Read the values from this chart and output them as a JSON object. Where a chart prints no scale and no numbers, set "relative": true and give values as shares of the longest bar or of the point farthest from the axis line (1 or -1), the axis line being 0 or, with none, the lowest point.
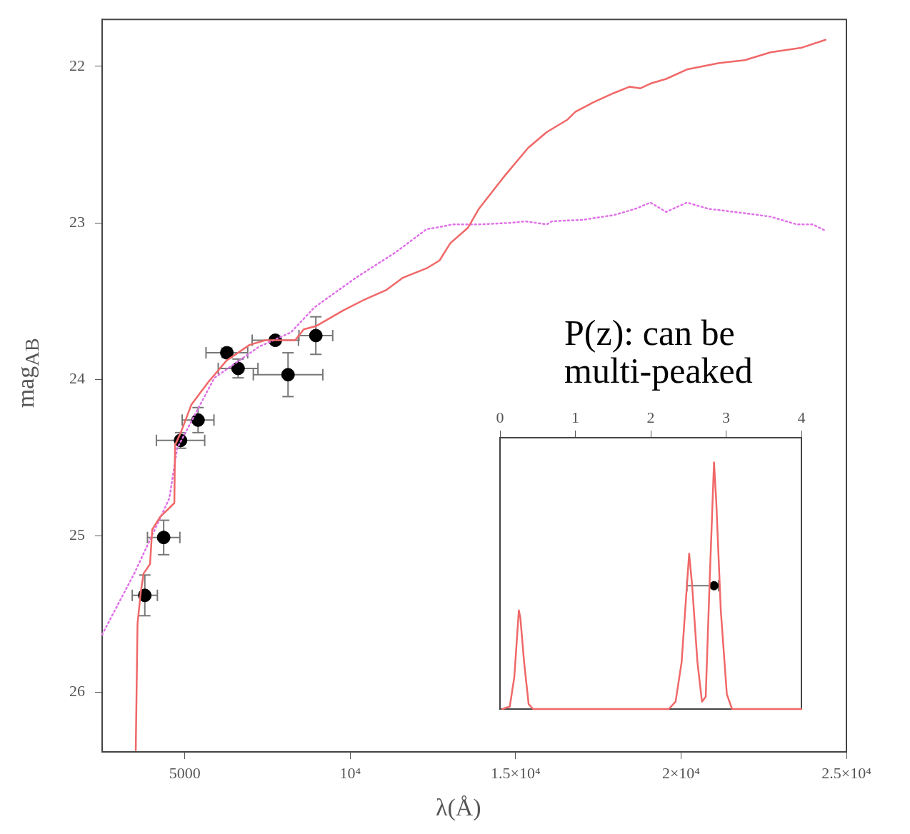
{
  "chart_data": [
    {
      "type": "line",
      "xlabel": "λ(Å)",
      "ylabel": "mag$_{AB}$",
      "xlim": [
        2500,
        25000
      ],
      "ylim": [
        26.38,
        21.7
      ],
      "xticks": [
        {
          "value": 5000,
          "label": "5000"
        },
        {
          "value": 10000,
          "label": "10⁴"
        },
        {
          "value": 15000,
          "label": "1.5×10⁴"
        },
        {
          "value": 20000,
          "label": "2×10⁴"
        },
        {
          "value": 25000,
          "label": "2.5×10⁴"
        }
      ],
      "yticks": [
        22,
        23,
        24,
        25,
        26
      ],
      "grid": false,
      "series": [
        {
          "type": "line",
          "color": "#f06868",
          "line_style": "solid",
          "x": [
            3516,
            3570,
            3667,
            3753,
            3948,
            4013,
            4250,
            4683,
            4704,
            4877,
            5201,
            5698,
            6260,
            6952,
            7427,
            8335,
            8594,
            8961,
            9783,
            10431,
            11079,
            11598,
            12311,
            12700,
            13024,
            13564,
            13888,
            14666,
            15380,
            15941,
            16568,
            16806,
            17346,
            17973,
            18448,
            18772,
            19075,
            19550,
            20177,
            21128,
            21927,
            22705,
            23656,
            24369
          ],
          "values": [
            26.37,
            25.56,
            25.36,
            25.24,
            25.18,
            24.96,
            24.88,
            24.79,
            24.42,
            24.34,
            24.16,
            24.02,
            23.88,
            23.78,
            23.75,
            23.75,
            23.68,
            23.66,
            23.56,
            23.49,
            23.43,
            23.35,
            23.29,
            23.24,
            23.13,
            23.03,
            22.91,
            22.7,
            22.52,
            22.42,
            22.34,
            22.29,
            22.23,
            22.17,
            22.13,
            22.14,
            22.11,
            22.08,
            22.02,
            21.98,
            21.96,
            21.91,
            21.88,
            21.83
          ]
        },
        {
          "type": "line",
          "color": "#e070e8",
          "line_style": "dotted",
          "x": [
            2500,
            3472,
            4531,
            4769,
            5893,
            7254,
            8205,
            8918,
            10172,
            11360,
            12311,
            12613,
            13089,
            13888,
            14839,
            15293,
            15941,
            16093,
            17043,
            17973,
            18621,
            19075,
            19550,
            20177,
            20501,
            20825,
            21603,
            22705,
            23505,
            23981,
            24369
          ],
          "values": [
            25.63,
            25.24,
            24.76,
            24.44,
            23.99,
            23.79,
            23.7,
            23.54,
            23.35,
            23.19,
            23.04,
            23.03,
            23.01,
            23.01,
            23.0,
            22.99,
            23.01,
            22.99,
            22.98,
            22.95,
            22.91,
            22.87,
            22.93,
            22.87,
            22.89,
            22.91,
            22.93,
            22.96,
            23.01,
            23.01,
            23.05
          ]
        },
        {
          "type": "scatter",
          "color": "#000000",
          "marker": "circle",
          "x": [
            3790,
            4360,
            4870,
            5400,
            6270,
            6610,
            7735,
            8120,
            8960
          ],
          "values": [
            25.38,
            25.01,
            24.39,
            24.26,
            23.83,
            23.93,
            23.75,
            23.97,
            23.72
          ],
          "errors": [
            0.13,
            0.11,
            0.05,
            0.08,
            0.03,
            0.06,
            0.02,
            0.14,
            0.12
          ],
          "xerrors": [
            380,
            490,
            730,
            480,
            630,
            600,
            700,
            1050,
            510
          ]
        }
      ]
    },
    {
      "type": "line",
      "title": "P(z): can be multi-peaked",
      "xlim": [
        0,
        4
      ],
      "xticks": [
        0,
        1,
        2,
        3,
        4
      ],
      "relative": true,
      "tick_labels": "x",
      "series": [
        {
          "type": "line",
          "color": "#f06868",
          "line_style": "solid",
          "x": [
            0.03,
            0.13,
            0.19,
            0.25,
            0.27,
            0.32,
            0.38,
            0.44,
            2.24,
            2.33,
            2.41,
            2.48,
            2.51,
            2.55,
            2.62,
            2.68,
            2.73,
            2.78,
            2.84,
            2.87,
            2.93,
            3.01,
            3.08,
            4.0
          ],
          "values": [
            0,
            0.01,
            0.13,
            0.4,
            0.37,
            0.19,
            0.02,
            0,
            0,
            0.03,
            0.19,
            0.5,
            0.63,
            0.5,
            0.19,
            0.03,
            0.05,
            0.5,
            1.0,
            0.84,
            0.4,
            0.06,
            0,
            0
          ]
        },
        {
          "type": "scatter",
          "color": "#000000",
          "marker": "circle",
          "x": [
            2.84
          ],
          "values": [
            0.5
          ],
          "xerrors": [
            [
              2.48,
              2.9
            ]
          ]
        }
      ]
    }
  ]
}
